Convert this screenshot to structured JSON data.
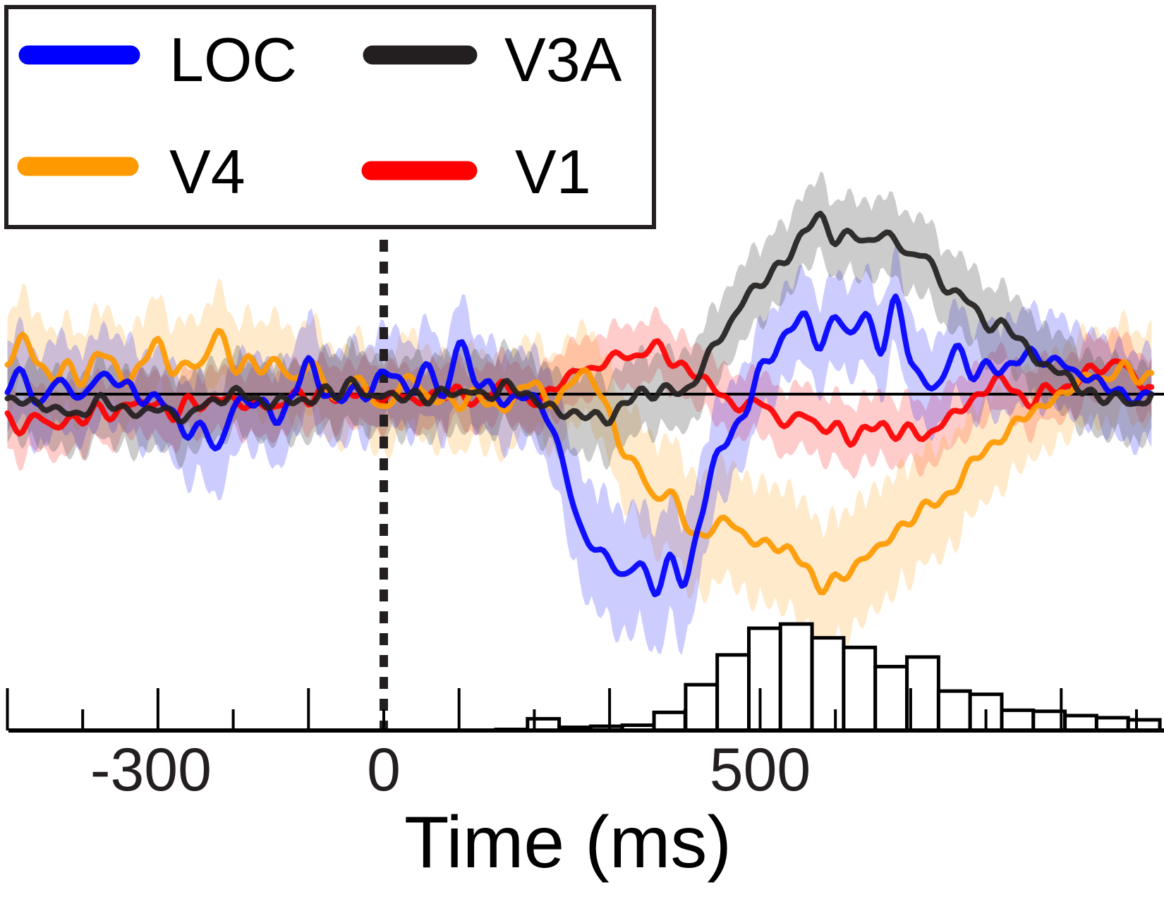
{
  "chart_data": {
    "type": "line",
    "title": "",
    "xlabel": "Time (ms)",
    "ylabel": "",
    "xlim": [
      -500,
      1035
    ],
    "ylim": [
      -32,
      36
    ],
    "grid": false,
    "x_tick_labels": [
      {
        "value": -300,
        "label": "-300"
      },
      {
        "value": 0,
        "label": "0"
      },
      {
        "value": 500,
        "label": "500"
      }
    ],
    "x_ticks_major": [
      -500,
      -300,
      -100,
      100,
      300,
      500,
      700,
      900
    ],
    "x_ticks_minor": [
      -400,
      -200,
      0,
      200,
      400,
      600,
      800,
      1000
    ],
    "baseline": 0,
    "event_marker": {
      "time": 0,
      "style": "dashed"
    },
    "legend": {
      "placement": "top-left",
      "entries": [
        {
          "label": "LOC",
          "color": "#0000ff"
        },
        {
          "label": "V3A",
          "color": "#231f20"
        },
        {
          "label": "V4",
          "color": "#ff9900"
        },
        {
          "label": "V1",
          "color": "#ff0000"
        }
      ]
    },
    "t": [
      -500,
      -480,
      -460,
      -440,
      -420,
      -400,
      -380,
      -360,
      -340,
      -320,
      -300,
      -280,
      -260,
      -240,
      -220,
      -200,
      -180,
      -160,
      -140,
      -120,
      -100,
      -80,
      -60,
      -40,
      -20,
      0,
      20,
      40,
      60,
      80,
      100,
      120,
      140,
      160,
      180,
      200,
      220,
      240,
      260,
      280,
      300,
      320,
      340,
      360,
      380,
      400,
      420,
      440,
      460,
      480,
      500,
      520,
      540,
      560,
      580,
      600,
      620,
      640,
      660,
      680,
      700,
      720,
      740,
      760,
      780,
      800,
      820,
      840,
      860,
      880,
      900,
      920,
      940,
      960,
      980,
      1000,
      1020
    ],
    "series": [
      {
        "name": "V1",
        "color": "#ff0000",
        "band_color": "#ff0000",
        "sem": 4,
        "values": [
          -3,
          -5,
          -3,
          -5,
          -3,
          -4,
          -2,
          -3,
          -1,
          -2,
          -1,
          -3,
          -1,
          -2,
          0,
          -1,
          -2,
          -1,
          -2,
          0,
          -1,
          1,
          -1,
          0,
          0.5,
          -1,
          0,
          -1,
          0,
          -0.5,
          0.5,
          -1,
          0,
          1,
          0,
          -1,
          0,
          2,
          4,
          3,
          5,
          6,
          5,
          7,
          5,
          4,
          2,
          1,
          -1,
          -2,
          -1,
          -3,
          -4,
          -3,
          -5,
          -4,
          -7,
          -5,
          -4,
          -6,
          -5,
          -6,
          -4,
          -3,
          -1,
          1,
          2,
          0,
          -1,
          1,
          0,
          2,
          4,
          3,
          5,
          2,
          1
        ]
      },
      {
        "name": "V4",
        "color": "#ff9900",
        "band_color": "#ff9900",
        "sem": 6,
        "values": [
          4,
          8,
          5,
          2,
          4,
          2,
          6,
          4,
          2,
          5,
          7,
          3,
          5,
          4,
          9,
          4,
          5,
          3,
          5,
          2,
          4,
          2,
          -1,
          2,
          0,
          -2,
          1,
          2,
          -1,
          0,
          -2,
          0,
          -1,
          -2,
          0,
          2,
          -1,
          0,
          3,
          2,
          -3,
          -9,
          -10,
          -15,
          -14,
          -18,
          -20,
          -19,
          -18,
          -20,
          -21,
          -22,
          -22,
          -24,
          -28,
          -26,
          -25,
          -23,
          -22,
          -19,
          -18,
          -16,
          -15,
          -13,
          -10,
          -8,
          -6,
          -4,
          -3,
          -1,
          0,
          1,
          3,
          2,
          4,
          2,
          3
        ]
      },
      {
        "name": "LOC",
        "color": "#0000ff",
        "band_color": "#0000ff",
        "sem": 6,
        "values": [
          1,
          3,
          -2,
          2,
          1,
          -1,
          3,
          2,
          1,
          -1,
          0,
          -3,
          -6,
          -4,
          -8,
          -2,
          -1,
          -1,
          -4,
          0,
          5,
          0,
          -1,
          1,
          0,
          3,
          2,
          1,
          4,
          -1,
          8,
          2,
          1,
          -1,
          0,
          -1,
          -4,
          -10,
          -19,
          -22,
          -23,
          -26,
          -24,
          -28,
          -23,
          -27,
          -18,
          -9,
          -6,
          -3,
          4,
          6,
          9,
          11,
          7,
          11,
          8,
          12,
          6,
          13,
          5,
          2,
          1,
          7,
          3,
          4,
          3,
          5,
          6,
          4,
          5,
          3,
          2,
          1,
          0.5,
          -1,
          0
        ]
      },
      {
        "name": "V3A",
        "color": "#231f20",
        "band_color": "#555555",
        "sem": 5,
        "values": [
          -1,
          -0.5,
          -1.5,
          -2.5,
          -2,
          -3,
          -1,
          -1.5,
          -2,
          -3,
          -2,
          -2.5,
          -3.5,
          -1.5,
          -1,
          0.5,
          -0.5,
          -1.5,
          -0.5,
          -1,
          -1.5,
          1,
          0,
          1.5,
          -0.5,
          0.5,
          -1,
          0,
          -0.5,
          0.5,
          -0.5,
          1,
          -0.5,
          1,
          0.5,
          -0.5,
          -2,
          -3,
          -2.5,
          -3,
          -4,
          -1,
          0.5,
          -0.5,
          1,
          0.5,
          3,
          7,
          10,
          14,
          15,
          18,
          20,
          23,
          25,
          22,
          23,
          21,
          23,
          22,
          19,
          20,
          16,
          14,
          13,
          10,
          10,
          8,
          6,
          4,
          3,
          1,
          0.5,
          -1,
          -0.5,
          -1.5,
          0
        ]
      }
    ],
    "histogram": {
      "bin_width_ms": 42,
      "bin_starts": [
        149,
        191,
        233,
        275,
        317,
        359,
        401,
        443,
        485,
        527,
        569,
        611,
        653,
        695,
        737,
        779,
        821,
        863,
        905,
        947,
        989
      ],
      "relative_counts": [
        1,
        11,
        3,
        4,
        5,
        17,
        43,
        71,
        96,
        100,
        87,
        78,
        60,
        69,
        37,
        34,
        19,
        18,
        14,
        12,
        10
      ]
    }
  }
}
